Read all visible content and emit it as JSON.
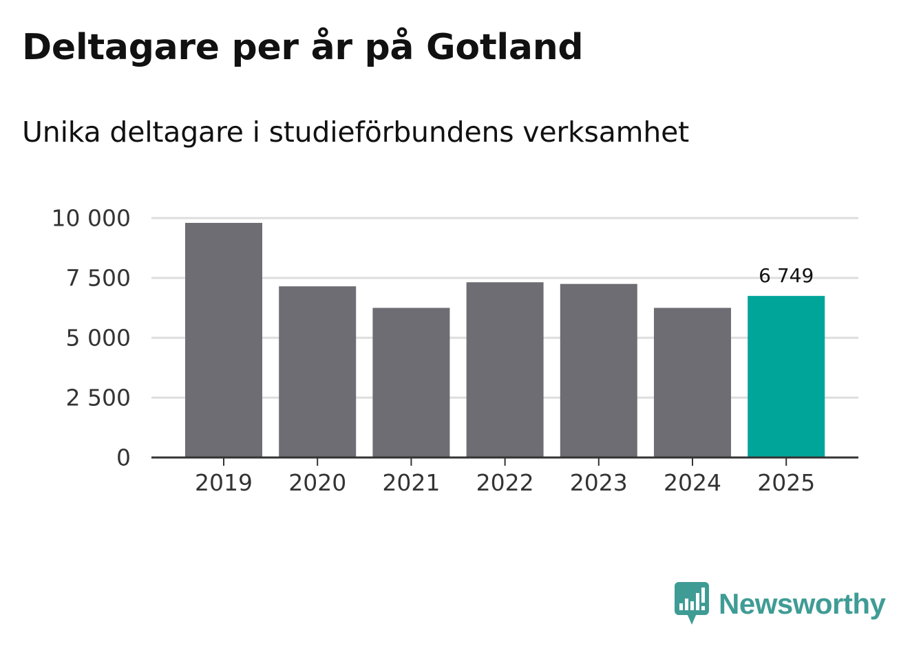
{
  "header": {
    "title": "Deltagare per år på Gotland",
    "subtitle": "Unika deltagare i studieförbundens verksamhet"
  },
  "chart_data": {
    "type": "bar",
    "title": "Deltagare per år på Gotland",
    "subtitle": "Unika deltagare i studieförbundens verksamhet",
    "xlabel": "",
    "ylabel": "",
    "categories": [
      "2019",
      "2020",
      "2021",
      "2022",
      "2023",
      "2024",
      "2025"
    ],
    "values": [
      9800,
      7150,
      6250,
      7320,
      7250,
      6250,
      6749
    ],
    "ylim": [
      0,
      10000
    ],
    "yticks": [
      0,
      2500,
      5000,
      7500,
      10000
    ],
    "ytick_labels": [
      "0",
      "2 500",
      "5 000",
      "7 500",
      "10 000"
    ],
    "grid": true,
    "highlight_index": 6,
    "data_labels": [
      {
        "index": 6,
        "text": "6 749"
      }
    ],
    "colors": {
      "bar": "#6e6d73",
      "highlight": "#00a599",
      "grid": "#dddddd",
      "axis": "#333333",
      "text": "#333333"
    }
  },
  "brand": {
    "name": "Newsworthy",
    "icon": "newsworthy-logo-icon",
    "color": "#3f9c95"
  }
}
